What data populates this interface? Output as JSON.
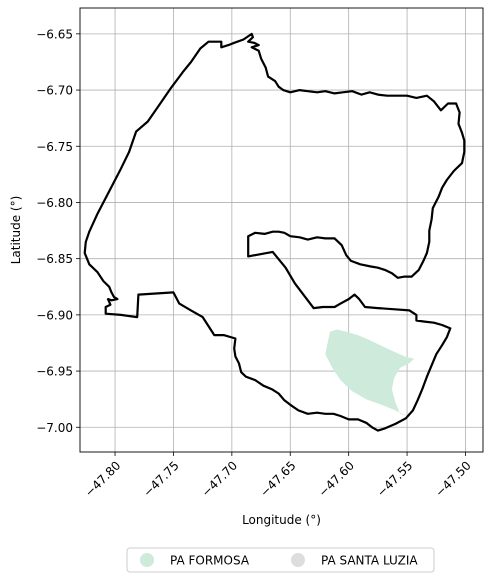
{
  "chart_data": {
    "type": "map",
    "xlabel": "Longitude (°)",
    "ylabel": "Latitude (°)",
    "xlim": [
      -47.83,
      -47.485
    ],
    "ylim": [
      -7.022,
      -6.627
    ],
    "grid": true,
    "legend_position": "bottom-center",
    "xticks": [
      {
        "value": -47.8,
        "label": "−47.80"
      },
      {
        "value": -47.75,
        "label": "−47.75"
      },
      {
        "value": -47.7,
        "label": "−47.70"
      },
      {
        "value": -47.65,
        "label": "−47.65"
      },
      {
        "value": -47.6,
        "label": "−47.60"
      },
      {
        "value": -47.55,
        "label": "−47.55"
      },
      {
        "value": -47.5,
        "label": "−47.50"
      }
    ],
    "yticks": [
      {
        "value": -6.65,
        "label": "−6.65"
      },
      {
        "value": -6.7,
        "label": "−6.70"
      },
      {
        "value": -6.75,
        "label": "−6.75"
      },
      {
        "value": -6.8,
        "label": "−6.80"
      },
      {
        "value": -6.85,
        "label": "−6.85"
      },
      {
        "value": -6.9,
        "label": "−6.90"
      },
      {
        "value": -6.95,
        "label": "−6.95"
      },
      {
        "value": -7.0,
        "label": "−7.00"
      }
    ],
    "boundary": {
      "color": "#000000",
      "coords": [
        [
          -47.825,
          -6.835
        ],
        [
          -47.822,
          -6.826
        ],
        [
          -47.815,
          -6.81
        ],
        [
          -47.805,
          -6.79
        ],
        [
          -47.795,
          -6.77
        ],
        [
          -47.788,
          -6.755
        ],
        [
          -47.782,
          -6.737
        ],
        [
          -47.772,
          -6.728
        ],
        [
          -47.762,
          -6.713
        ],
        [
          -47.752,
          -6.698
        ],
        [
          -47.742,
          -6.684
        ],
        [
          -47.735,
          -6.675
        ],
        [
          -47.727,
          -6.663
        ],
        [
          -47.72,
          -6.657
        ],
        [
          -47.709,
          -6.657
        ],
        [
          -47.709,
          -6.662
        ],
        [
          -47.703,
          -6.66
        ],
        [
          -47.698,
          -6.658
        ],
        [
          -47.69,
          -6.655
        ],
        [
          -47.683,
          -6.65
        ],
        [
          -47.682,
          -6.653
        ],
        [
          -47.686,
          -6.657
        ],
        [
          -47.681,
          -6.658
        ],
        [
          -47.677,
          -6.66
        ],
        [
          -47.683,
          -6.662
        ],
        [
          -47.677,
          -6.665
        ],
        [
          -47.675,
          -6.672
        ],
        [
          -47.671,
          -6.68
        ],
        [
          -47.669,
          -6.688
        ],
        [
          -47.663,
          -6.692
        ],
        [
          -47.66,
          -6.697
        ],
        [
          -47.656,
          -6.7
        ],
        [
          -47.65,
          -6.702
        ],
        [
          -47.642,
          -6.7
        ],
        [
          -47.635,
          -6.701
        ],
        [
          -47.627,
          -6.702
        ],
        [
          -47.62,
          -6.701
        ],
        [
          -47.612,
          -6.703
        ],
        [
          -47.605,
          -6.702
        ],
        [
          -47.597,
          -6.701
        ],
        [
          -47.589,
          -6.704
        ],
        [
          -47.582,
          -6.702
        ],
        [
          -47.575,
          -6.704
        ],
        [
          -47.567,
          -6.705
        ],
        [
          -47.558,
          -6.705
        ],
        [
          -47.55,
          -6.705
        ],
        [
          -47.542,
          -6.707
        ],
        [
          -47.533,
          -6.705
        ],
        [
          -47.527,
          -6.71
        ],
        [
          -47.521,
          -6.718
        ],
        [
          -47.515,
          -6.712
        ],
        [
          -47.508,
          -6.712
        ],
        [
          -47.505,
          -6.72
        ],
        [
          -47.506,
          -6.73
        ],
        [
          -47.503,
          -6.738
        ],
        [
          -47.501,
          -6.745
        ],
        [
          -47.501,
          -6.755
        ],
        [
          -47.503,
          -6.765
        ],
        [
          -47.51,
          -6.772
        ],
        [
          -47.516,
          -6.78
        ],
        [
          -47.52,
          -6.787
        ],
        [
          -47.523,
          -6.795
        ],
        [
          -47.528,
          -6.805
        ],
        [
          -47.529,
          -6.815
        ],
        [
          -47.531,
          -6.825
        ],
        [
          -47.531,
          -6.835
        ],
        [
          -47.533,
          -6.845
        ],
        [
          -47.536,
          -6.852
        ],
        [
          -47.54,
          -6.86
        ],
        [
          -47.546,
          -6.866
        ],
        [
          -47.552,
          -6.866
        ],
        [
          -47.558,
          -6.867
        ],
        [
          -47.563,
          -6.863
        ],
        [
          -47.569,
          -6.86
        ],
        [
          -47.575,
          -6.858
        ],
        [
          -47.581,
          -6.857
        ],
        [
          -47.59,
          -6.855
        ],
        [
          -47.598,
          -6.852
        ],
        [
          -47.602,
          -6.847
        ],
        [
          -47.606,
          -6.838
        ],
        [
          -47.612,
          -6.832
        ],
        [
          -47.62,
          -6.832
        ],
        [
          -47.627,
          -6.831
        ],
        [
          -47.635,
          -6.833
        ],
        [
          -47.642,
          -6.831
        ],
        [
          -47.65,
          -6.83
        ],
        [
          -47.655,
          -6.827
        ],
        [
          -47.66,
          -6.826
        ],
        [
          -47.665,
          -6.826
        ],
        [
          -47.672,
          -6.828
        ],
        [
          -47.68,
          -6.827
        ],
        [
          -47.686,
          -6.83
        ],
        [
          -47.686,
          -6.848
        ],
        [
          -47.665,
          -6.844
        ],
        [
          -47.654,
          -6.858
        ],
        [
          -47.646,
          -6.872
        ],
        [
          -47.638,
          -6.883
        ],
        [
          -47.63,
          -6.894
        ],
        [
          -47.622,
          -6.893
        ],
        [
          -47.617,
          -6.893
        ],
        [
          -47.612,
          -6.893
        ],
        [
          -47.607,
          -6.89
        ],
        [
          -47.6,
          -6.886
        ],
        [
          -47.595,
          -6.882
        ],
        [
          -47.591,
          -6.886
        ],
        [
          -47.586,
          -6.893
        ],
        [
          -47.575,
          -6.894
        ],
        [
          -47.562,
          -6.895
        ],
        [
          -47.548,
          -6.896
        ],
        [
          -47.542,
          -6.9
        ],
        [
          -47.542,
          -6.905
        ],
        [
          -47.535,
          -6.906
        ],
        [
          -47.527,
          -6.907
        ],
        [
          -47.52,
          -6.909
        ],
        [
          -47.513,
          -6.912
        ],
        [
          -47.516,
          -6.92
        ],
        [
          -47.52,
          -6.927
        ],
        [
          -47.525,
          -6.935
        ],
        [
          -47.529,
          -6.945
        ],
        [
          -47.533,
          -6.955
        ],
        [
          -47.537,
          -6.966
        ],
        [
          -47.541,
          -6.976
        ],
        [
          -47.545,
          -6.985
        ],
        [
          -47.551,
          -6.992
        ],
        [
          -47.56,
          -6.997
        ],
        [
          -47.569,
          -7.001
        ],
        [
          -47.575,
          -7.003
        ],
        [
          -47.58,
          -7.0
        ],
        [
          -47.585,
          -6.996
        ],
        [
          -47.592,
          -6.993
        ],
        [
          -47.6,
          -6.993
        ],
        [
          -47.607,
          -6.99
        ],
        [
          -47.613,
          -6.988
        ],
        [
          -47.62,
          -6.988
        ],
        [
          -47.627,
          -6.987
        ],
        [
          -47.635,
          -6.988
        ],
        [
          -47.643,
          -6.985
        ],
        [
          -47.65,
          -6.98
        ],
        [
          -47.655,
          -6.976
        ],
        [
          -47.66,
          -6.97
        ],
        [
          -47.666,
          -6.966
        ],
        [
          -47.673,
          -6.963
        ],
        [
          -47.68,
          -6.958
        ],
        [
          -47.688,
          -6.955
        ],
        [
          -47.692,
          -6.951
        ],
        [
          -47.694,
          -6.943
        ],
        [
          -47.697,
          -6.937
        ],
        [
          -47.698,
          -6.93
        ],
        [
          -47.697,
          -6.921
        ],
        [
          -47.707,
          -6.918
        ],
        [
          -47.715,
          -6.918
        ],
        [
          -47.72,
          -6.91
        ],
        [
          -47.725,
          -6.902
        ],
        [
          -47.735,
          -6.896
        ],
        [
          -47.745,
          -6.89
        ],
        [
          -47.75,
          -6.88
        ],
        [
          -47.78,
          -6.882
        ],
        [
          -47.781,
          -6.902
        ],
        [
          -47.795,
          -6.9
        ],
        [
          -47.808,
          -6.899
        ],
        [
          -47.808,
          -6.893
        ],
        [
          -47.804,
          -6.891
        ],
        [
          -47.806,
          -6.886
        ],
        [
          -47.803,
          -6.887
        ],
        [
          -47.798,
          -6.886
        ],
        [
          -47.801,
          -6.884
        ],
        [
          -47.803,
          -6.88
        ],
        [
          -47.805,
          -6.875
        ],
        [
          -47.81,
          -6.87
        ],
        [
          -47.815,
          -6.862
        ],
        [
          -47.822,
          -6.855
        ],
        [
          -47.826,
          -6.845
        ],
        [
          -47.825,
          -6.835
        ]
      ]
    },
    "areas": [
      {
        "name": "PA FORMOSA",
        "color": "#cdeadb",
        "coords": [
          [
            -47.616,
            -6.915
          ],
          [
            -47.61,
            -6.913
          ],
          [
            -47.602,
            -6.915
          ],
          [
            -47.592,
            -6.918
          ],
          [
            -47.583,
            -6.922
          ],
          [
            -47.573,
            -6.927
          ],
          [
            -47.563,
            -6.932
          ],
          [
            -47.552,
            -6.937
          ],
          [
            -47.544,
            -6.939
          ],
          [
            -47.548,
            -6.943
          ],
          [
            -47.556,
            -6.947
          ],
          [
            -47.561,
            -6.956
          ],
          [
            -47.563,
            -6.966
          ],
          [
            -47.56,
            -6.978
          ],
          [
            -47.556,
            -6.988
          ],
          [
            -47.548,
            -6.991
          ],
          [
            -47.56,
            -6.985
          ],
          [
            -47.572,
            -6.98
          ],
          [
            -47.585,
            -6.975
          ],
          [
            -47.597,
            -6.968
          ],
          [
            -47.607,
            -6.958
          ],
          [
            -47.614,
            -6.947
          ],
          [
            -47.62,
            -6.935
          ],
          [
            -47.618,
            -6.925
          ],
          [
            -47.616,
            -6.915
          ]
        ]
      },
      {
        "name": "PA SANTA LUZIA",
        "color": "#dddddd",
        "coords": []
      }
    ]
  },
  "legend": {
    "items": [
      {
        "label": "PA FORMOSA",
        "color": "#cdeadb"
      },
      {
        "label": "PA SANTA LUZIA",
        "color": "#dddddd"
      }
    ]
  }
}
